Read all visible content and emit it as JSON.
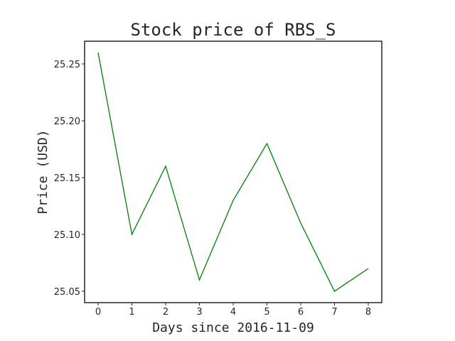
{
  "chart_data": {
    "type": "line",
    "title": "Stock price of RBS_S",
    "xlabel": "Days since 2016-11-09",
    "ylabel": "Price (USD)",
    "x": [
      0,
      1,
      2,
      3,
      4,
      5,
      6,
      7,
      8
    ],
    "series": [
      {
        "values": [
          25.26,
          25.1,
          25.16,
          25.06,
          25.13,
          25.18,
          25.11,
          25.05,
          25.07
        ],
        "color": "#008000"
      }
    ],
    "xlim": [
      -0.4,
      8.4
    ],
    "ylim": [
      25.04,
      25.27
    ],
    "xticks": [
      "0",
      "1",
      "2",
      "3",
      "4",
      "5",
      "6",
      "7",
      "8"
    ],
    "yticks": [
      "25.05",
      "25.10",
      "25.15",
      "25.20",
      "25.25"
    ],
    "grid": false,
    "legend": "none"
  }
}
